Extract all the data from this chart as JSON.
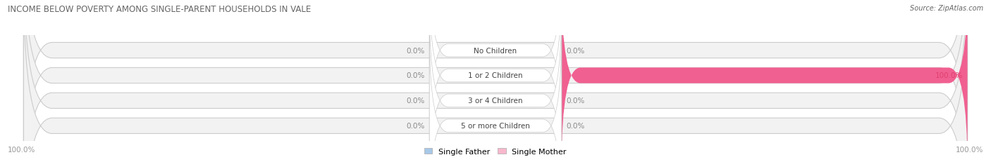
{
  "title": "INCOME BELOW POVERTY AMONG SINGLE-PARENT HOUSEHOLDS IN VALE",
  "source": "Source: ZipAtlas.com",
  "categories": [
    "No Children",
    "1 or 2 Children",
    "3 or 4 Children",
    "5 or more Children"
  ],
  "single_father": [
    0.0,
    0.0,
    0.0,
    0.0
  ],
  "single_mother": [
    0.0,
    100.0,
    0.0,
    0.0
  ],
  "father_color": "#a8c8e8",
  "mother_color_full": "#f06090",
  "mother_color_partial": "#f8b8cc",
  "bar_bg_color": "#f2f2f2",
  "bar_outline_color": "#cccccc",
  "title_color": "#666666",
  "label_gray": "#888888",
  "label_pink_full": "#e04070",
  "background_color": "#ffffff",
  "figsize": [
    14.06,
    2.32
  ],
  "dpi": 100,
  "axis_label_left": "100.0%",
  "axis_label_right": "100.0%",
  "legend_father": "Single Father",
  "legend_mother": "Single Mother"
}
